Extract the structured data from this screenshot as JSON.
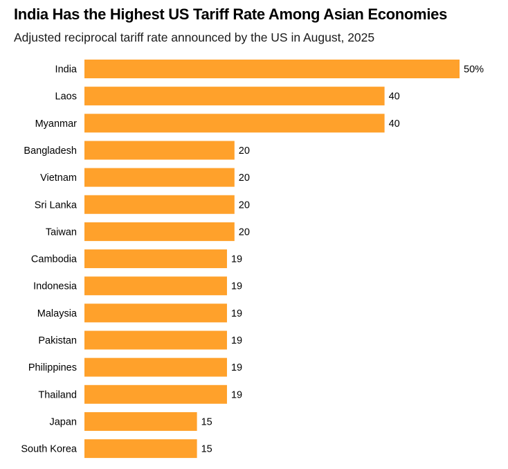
{
  "header": {
    "title": "India Has the Highest US Tariff Rate Among Asian Economies",
    "subtitle": "Adjusted reciprocal tariff rate announced by the US in August, 2025"
  },
  "chart_data": {
    "type": "bar",
    "orientation": "horizontal",
    "title": "India Has the Highest US Tariff Rate Among Asian Economies",
    "subtitle": "Adjusted reciprocal tariff rate announced by the US in August, 2025",
    "xlabel": "",
    "ylabel": "",
    "grid": false,
    "bar_color": "#ffa12b",
    "xlim": [
      0,
      50
    ],
    "categories": [
      "India",
      "Laos",
      "Myanmar",
      "Bangladesh",
      "Vietnam",
      "Sri Lanka",
      "Taiwan",
      "Cambodia",
      "Indonesia",
      "Malaysia",
      "Pakistan",
      "Philippines",
      "Thailand",
      "Japan",
      "South Korea"
    ],
    "values": [
      50,
      40,
      40,
      20,
      20,
      20,
      20,
      19,
      19,
      19,
      19,
      19,
      19,
      15,
      15
    ],
    "value_labels": [
      "50%",
      "40",
      "40",
      "20",
      "20",
      "20",
      "20",
      "19",
      "19",
      "19",
      "19",
      "19",
      "19",
      "15",
      "15"
    ]
  }
}
